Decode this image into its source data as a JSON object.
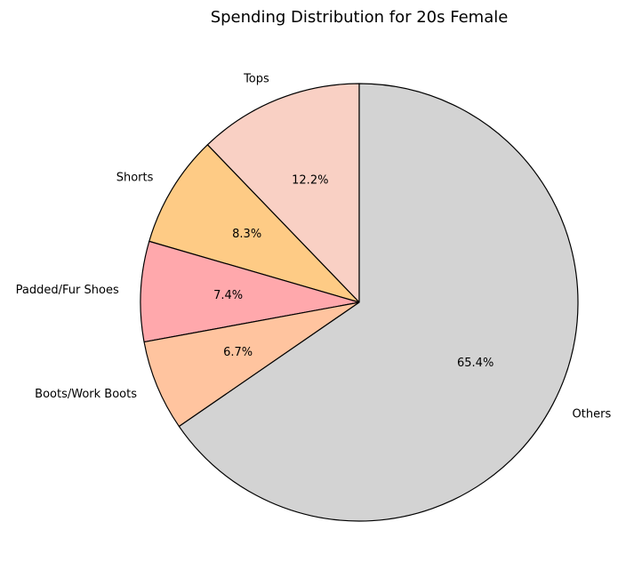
{
  "chart_data": {
    "type": "pie",
    "title": "Spending Distribution for 20s Female",
    "labels": [
      "Tops",
      "Shorts",
      "Padded/Fur Shoes",
      "Boots/Work Boots",
      "Others"
    ],
    "values": [
      12.2,
      8.3,
      7.4,
      6.7,
      65.4
    ],
    "percent_labels": [
      "12.2%",
      "8.3%",
      "7.4%",
      "6.7%",
      "65.4%"
    ],
    "colors": [
      "#f9d0c4",
      "#fecb85",
      "#ffa8ac",
      "#ffc49f",
      "#d3d3d3"
    ],
    "start_angle_deg": 90,
    "direction": "counterclockwise",
    "edge_color": "#000000",
    "legend": "none"
  }
}
